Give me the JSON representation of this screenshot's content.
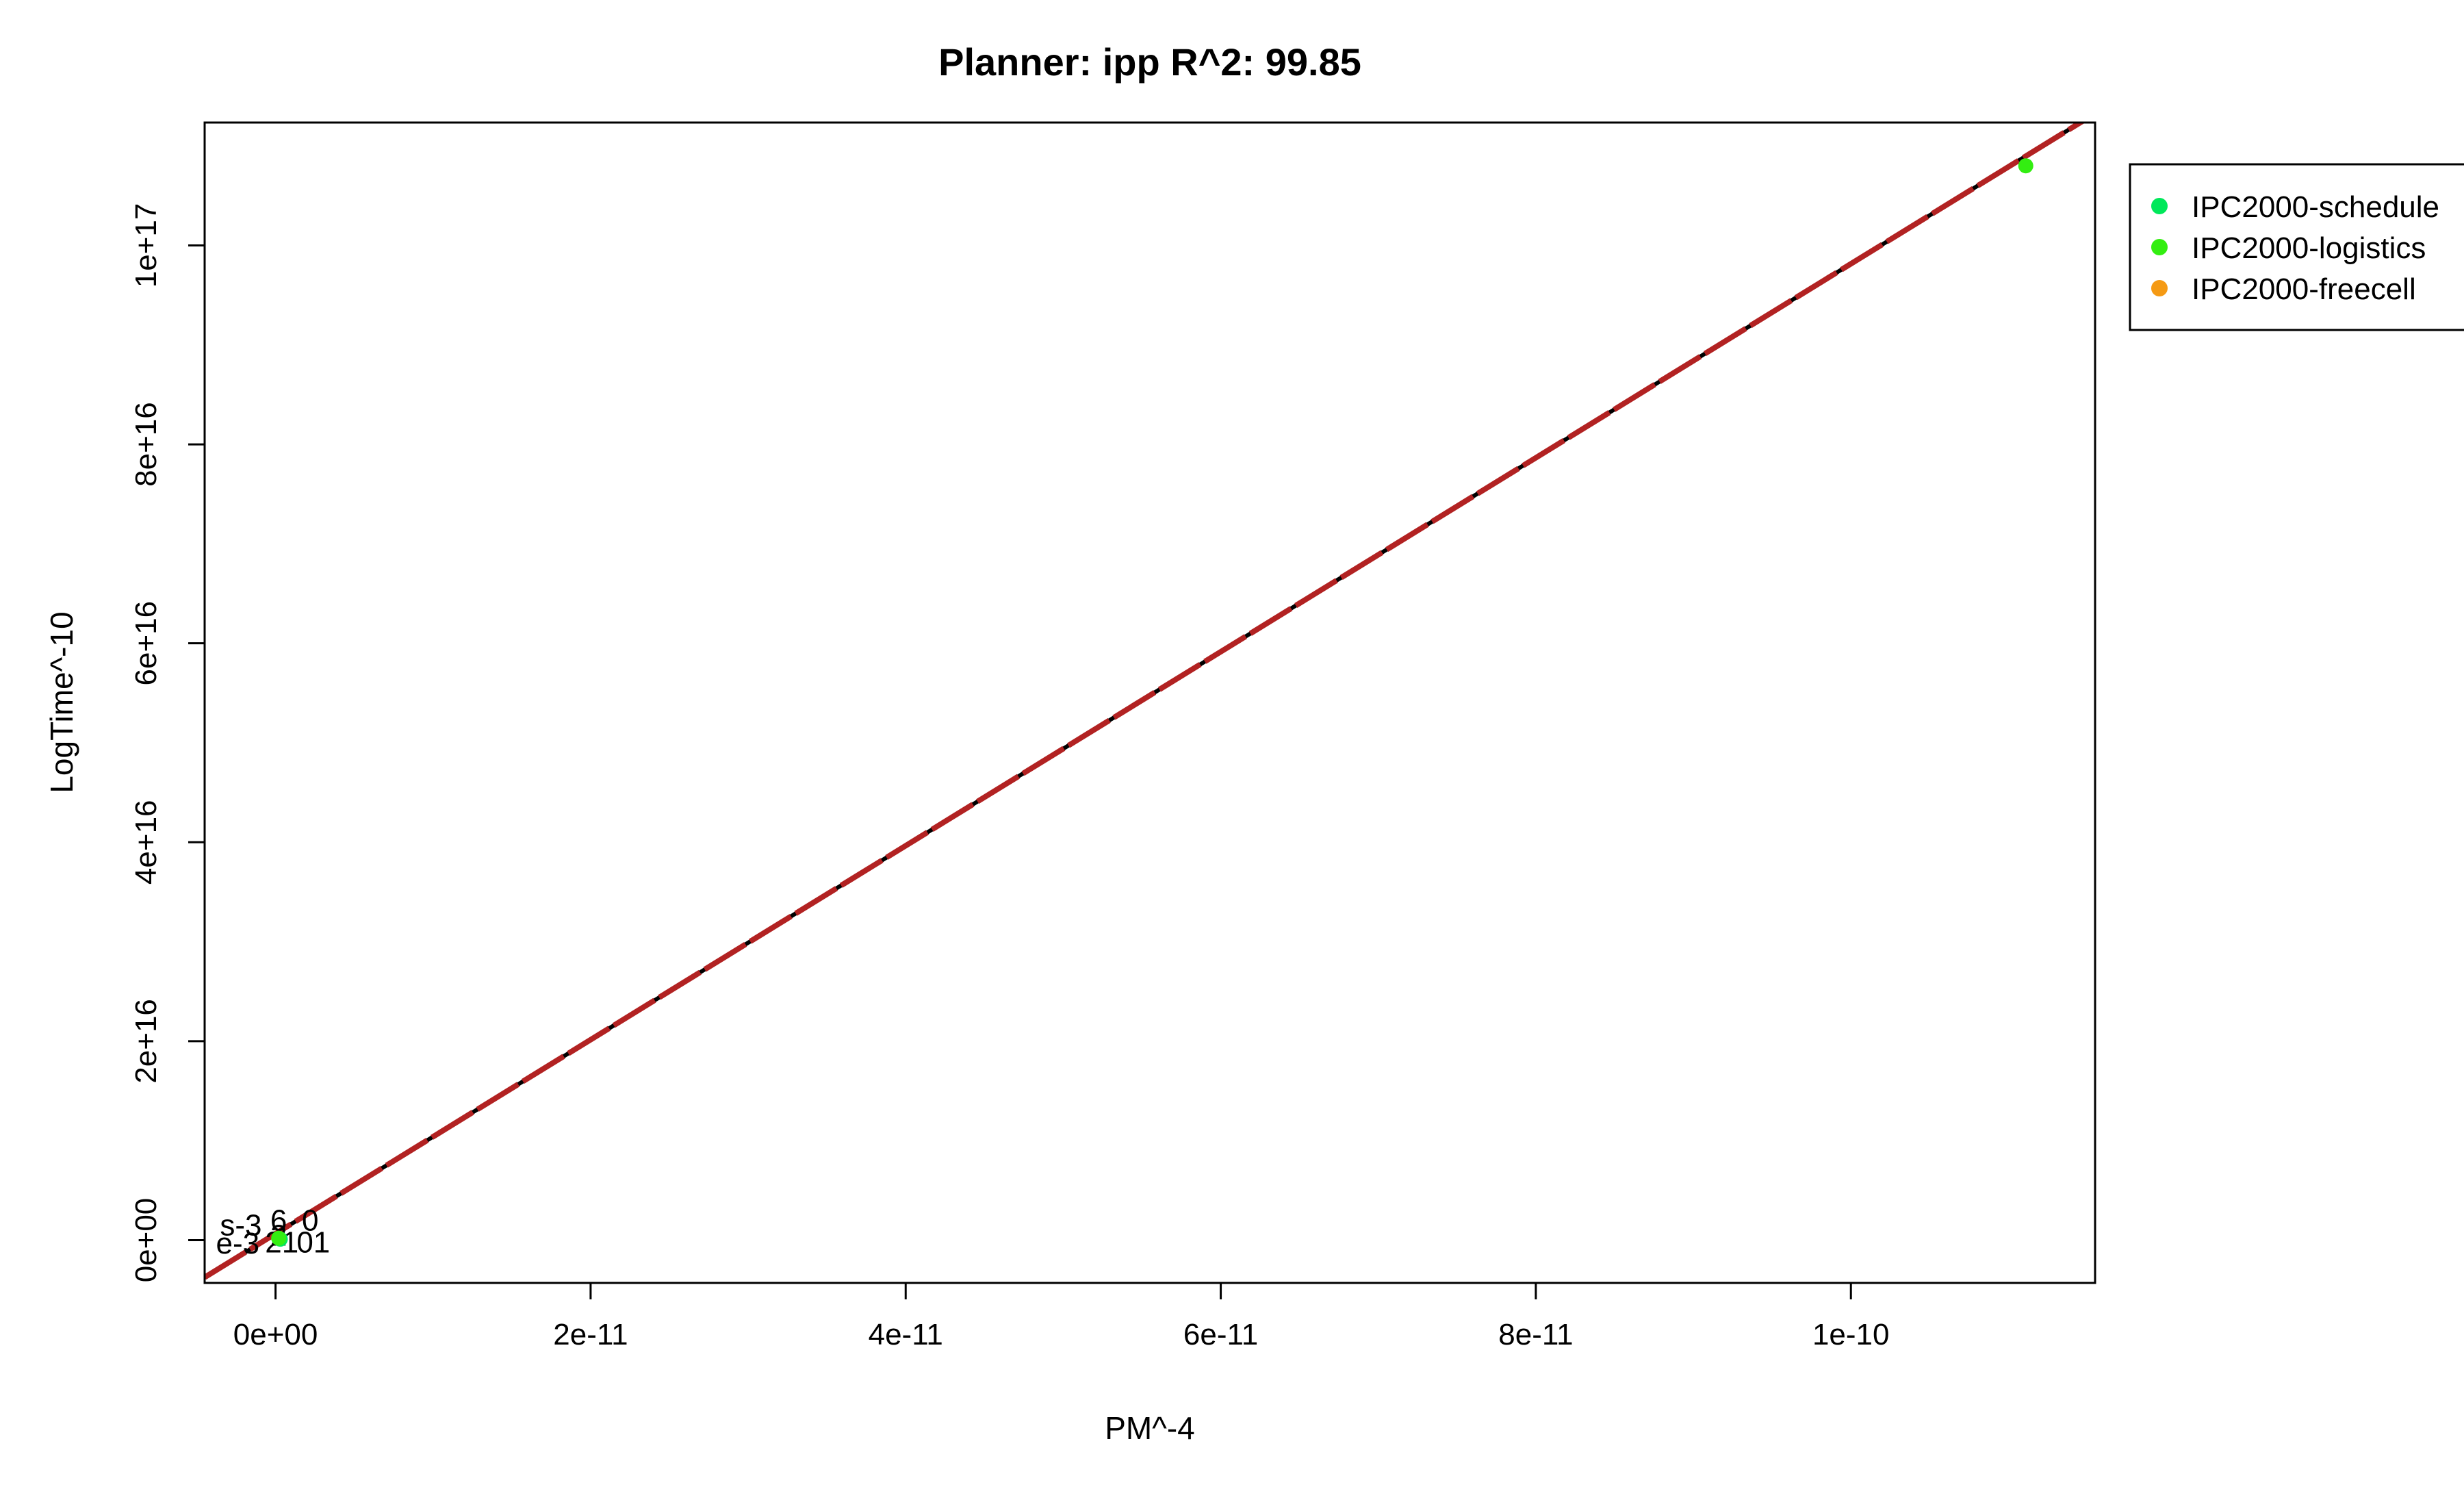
{
  "chart_data": {
    "type": "scatter",
    "title": "Planner: ipp R^2: 99.85",
    "xlabel": "PM^-4",
    "ylabel": "LogTime^-10",
    "xlim": [
      -4.5e-12,
      1.155e-10
    ],
    "ylim": [
      -4300000000000000.0,
      1.1235e+17
    ],
    "x_ticks": [
      0,
      2e-11,
      4e-11,
      6e-11,
      8e-11,
      1e-10
    ],
    "x_tick_labels": [
      "0e+00",
      "2e-11",
      "4e-11",
      "6e-11",
      "8e-11",
      "1e-10"
    ],
    "y_ticks": [
      0,
      2e+16,
      4e+16,
      6e+16,
      8e+16,
      1e+17
    ],
    "y_tick_labels": [
      "0e+00",
      "2e+16",
      "4e+16",
      "6e+16",
      "8e+16",
      "1e+17"
    ],
    "grid": false,
    "legend_position": "right",
    "series": [
      {
        "name": "IPC2000-schedule",
        "color": "#00e85a",
        "points": [
          {
            "x": 3e-13,
            "y": 100000000000000.0
          }
        ]
      },
      {
        "name": "IPC2000-logistics",
        "color": "#33ee11",
        "points": [
          {
            "x": 1.111e-10,
            "y": 1.08e+17
          },
          {
            "x": 2e-13,
            "y": 200000000000000.0
          }
        ]
      },
      {
        "name": "IPC2000-freecell",
        "color": "#f59a14",
        "points": []
      }
    ],
    "point_labels": [
      {
        "text": "s-3",
        "x": -2.2e-12,
        "y": 1500000000000000.0
      },
      {
        "text": "e-3",
        "x": -2.4e-12,
        "y": -300000000000000.0
      },
      {
        "text": "6",
        "x": 2e-13,
        "y": 2000000000000000.0
      },
      {
        "text": "2",
        "x": 2e-13,
        "y": 500000000000000.0
      },
      {
        "text": "0",
        "x": 2.2e-12,
        "y": 2000000000000000.0
      },
      {
        "text": "01",
        "x": 2.4e-12,
        "y": -200000000000000.0
      },
      {
        "text": "21",
        "x": 4e-13,
        "y": -200000000000000.0
      }
    ],
    "fit_lines": [
      {
        "style": "solid",
        "color": "#000000",
        "slope": 975000000000000000000000000,
        "intercept": 650000000000000.0
      },
      {
        "style": "dashed",
        "color": "#b22222",
        "slope": 975000000000000000000000000,
        "intercept": 650000000000000.0
      }
    ]
  }
}
